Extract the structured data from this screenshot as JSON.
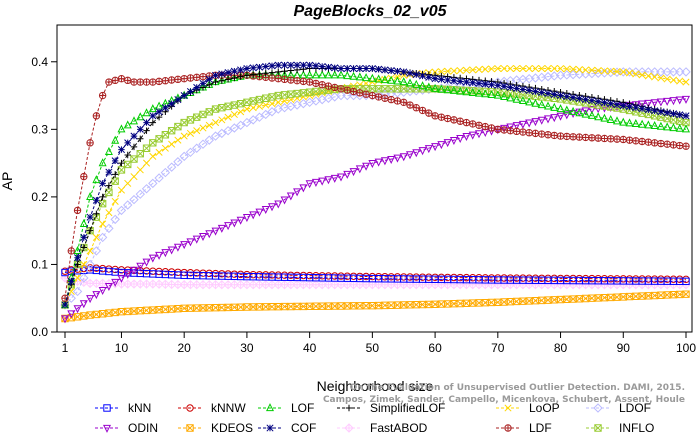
{
  "chart_data": {
    "type": "line",
    "title": "PageBlocks_02_v05",
    "xlabel": "Neighborhood size",
    "ylabel": "AP",
    "xlim": [
      1,
      100
    ],
    "ylim": [
      0,
      0.45
    ],
    "xticks": [
      1,
      10,
      20,
      30,
      40,
      50,
      60,
      70,
      80,
      90,
      100
    ],
    "yticks": [
      0.0,
      0.1,
      0.2,
      0.3,
      0.4
    ],
    "ytick_labels": [
      "0.0",
      "0.1",
      "0.2",
      "0.3",
      "0.4"
    ],
    "grid": false,
    "legend_position": "bottom",
    "credit": "Campos, Zimek, Sander, Campello, Micenkova, Schubert, Assent, Houle",
    "credit_line1": "On the Evaluation of Unsupervised Outlier Detection. DAMI, 2015.",
    "series": [
      {
        "name": "kNN",
        "color": "#0000ff",
        "marker": "square",
        "x": [
          1,
          2,
          5,
          10,
          20,
          30,
          50,
          70,
          100
        ],
        "y": [
          0.088,
          0.09,
          0.092,
          0.088,
          0.084,
          0.082,
          0.079,
          0.077,
          0.075
        ]
      },
      {
        "name": "kNNW",
        "color": "#cc0000",
        "marker": "circle",
        "x": [
          1,
          2,
          5,
          10,
          20,
          30,
          50,
          70,
          100
        ],
        "y": [
          0.09,
          0.092,
          0.095,
          0.092,
          0.088,
          0.085,
          0.082,
          0.08,
          0.078
        ]
      },
      {
        "name": "LOF",
        "color": "#00cc00",
        "marker": "triangle-up",
        "x": [
          1,
          3,
          5,
          7,
          10,
          15,
          20,
          25,
          30,
          35,
          40,
          45,
          50,
          55,
          60,
          70,
          80,
          90,
          100
        ],
        "y": [
          0.04,
          0.12,
          0.2,
          0.25,
          0.3,
          0.33,
          0.35,
          0.37,
          0.38,
          0.38,
          0.38,
          0.38,
          0.375,
          0.37,
          0.36,
          0.35,
          0.33,
          0.31,
          0.3
        ]
      },
      {
        "name": "SimplifiedLOF",
        "color": "#000000",
        "marker": "plus",
        "x": [
          1,
          3,
          5,
          7,
          10,
          15,
          20,
          25,
          30,
          35,
          40,
          45,
          50,
          55,
          60,
          70,
          80,
          90,
          100
        ],
        "y": [
          0.04,
          0.1,
          0.15,
          0.2,
          0.25,
          0.31,
          0.35,
          0.37,
          0.38,
          0.385,
          0.39,
          0.39,
          0.39,
          0.385,
          0.38,
          0.37,
          0.355,
          0.34,
          0.32
        ]
      },
      {
        "name": "LoOP",
        "color": "#ffd700",
        "marker": "x",
        "x": [
          1,
          3,
          5,
          7,
          10,
          15,
          20,
          25,
          30,
          35,
          40,
          45,
          50,
          55,
          60,
          70,
          80,
          90,
          100
        ],
        "y": [
          0.04,
          0.08,
          0.12,
          0.16,
          0.21,
          0.26,
          0.29,
          0.31,
          0.33,
          0.34,
          0.35,
          0.36,
          0.37,
          0.38,
          0.385,
          0.39,
          0.39,
          0.385,
          0.37
        ]
      },
      {
        "name": "LDOF",
        "color": "#bbbbff",
        "marker": "diamond",
        "x": [
          1,
          3,
          5,
          7,
          10,
          15,
          20,
          25,
          30,
          35,
          40,
          45,
          50,
          55,
          60,
          70,
          80,
          90,
          100
        ],
        "y": [
          0.04,
          0.06,
          0.1,
          0.14,
          0.18,
          0.22,
          0.26,
          0.29,
          0.31,
          0.33,
          0.34,
          0.35,
          0.35,
          0.355,
          0.36,
          0.37,
          0.38,
          0.385,
          0.385
        ]
      },
      {
        "name": "ODIN",
        "color": "#9900cc",
        "marker": "triangle-down",
        "x": [
          1,
          5,
          10,
          15,
          20,
          25,
          30,
          35,
          40,
          45,
          50,
          55,
          60,
          65,
          70,
          75,
          80,
          85,
          90,
          95,
          100
        ],
        "y": [
          0.02,
          0.05,
          0.08,
          0.11,
          0.13,
          0.15,
          0.17,
          0.19,
          0.22,
          0.23,
          0.25,
          0.26,
          0.275,
          0.29,
          0.3,
          0.31,
          0.32,
          0.33,
          0.335,
          0.34,
          0.345
        ]
      },
      {
        "name": "KDEOS",
        "color": "#ffaa00",
        "marker": "square-x",
        "x": [
          1,
          5,
          10,
          20,
          30,
          40,
          50,
          60,
          70,
          80,
          90,
          100
        ],
        "y": [
          0.02,
          0.025,
          0.03,
          0.035,
          0.037,
          0.038,
          0.039,
          0.041,
          0.044,
          0.048,
          0.052,
          0.056
        ]
      },
      {
        "name": "COF",
        "color": "#000080",
        "marker": "asterisk",
        "x": [
          1,
          3,
          5,
          7,
          10,
          15,
          20,
          25,
          30,
          35,
          40,
          45,
          50,
          55,
          60,
          70,
          80,
          90,
          100
        ],
        "y": [
          0.04,
          0.11,
          0.17,
          0.22,
          0.27,
          0.32,
          0.35,
          0.38,
          0.39,
          0.395,
          0.395,
          0.39,
          0.39,
          0.385,
          0.375,
          0.365,
          0.35,
          0.335,
          0.32
        ]
      },
      {
        "name": "FastABOD",
        "color": "#ffccff",
        "marker": "diamond-plus",
        "x": [
          1,
          3,
          5,
          7,
          10,
          15,
          20,
          25,
          30,
          35,
          40,
          45,
          50,
          55,
          60,
          70,
          80,
          90,
          100
        ],
        "y": [
          0.08,
          0.075,
          0.072,
          0.072,
          0.071,
          0.071,
          0.07,
          0.07,
          0.07,
          0.07,
          0.07,
          0.07,
          0.07,
          0.07,
          0.07,
          0.07,
          0.07,
          0.07,
          0.07
        ]
      },
      {
        "name": "LDF",
        "color": "#aa2222",
        "marker": "circle-plus",
        "x": [
          1,
          2,
          3,
          4,
          5,
          6,
          7,
          8,
          10,
          12,
          15,
          20,
          25,
          30,
          35,
          40,
          45,
          50,
          55,
          60,
          65,
          70,
          80,
          90,
          100
        ],
        "y": [
          0.05,
          0.12,
          0.18,
          0.23,
          0.28,
          0.32,
          0.35,
          0.37,
          0.375,
          0.37,
          0.37,
          0.375,
          0.38,
          0.38,
          0.375,
          0.37,
          0.36,
          0.35,
          0.34,
          0.32,
          0.31,
          0.3,
          0.29,
          0.285,
          0.275
        ]
      },
      {
        "name": "INFLO",
        "color": "#99cc33",
        "marker": "hourglass",
        "x": [
          1,
          3,
          5,
          7,
          10,
          15,
          20,
          25,
          30,
          35,
          40,
          45,
          50,
          55,
          60,
          70,
          80,
          90,
          100
        ],
        "y": [
          0.04,
          0.1,
          0.15,
          0.19,
          0.24,
          0.28,
          0.31,
          0.33,
          0.34,
          0.35,
          0.355,
          0.36,
          0.36,
          0.36,
          0.36,
          0.355,
          0.345,
          0.33,
          0.31
        ]
      }
    ]
  }
}
